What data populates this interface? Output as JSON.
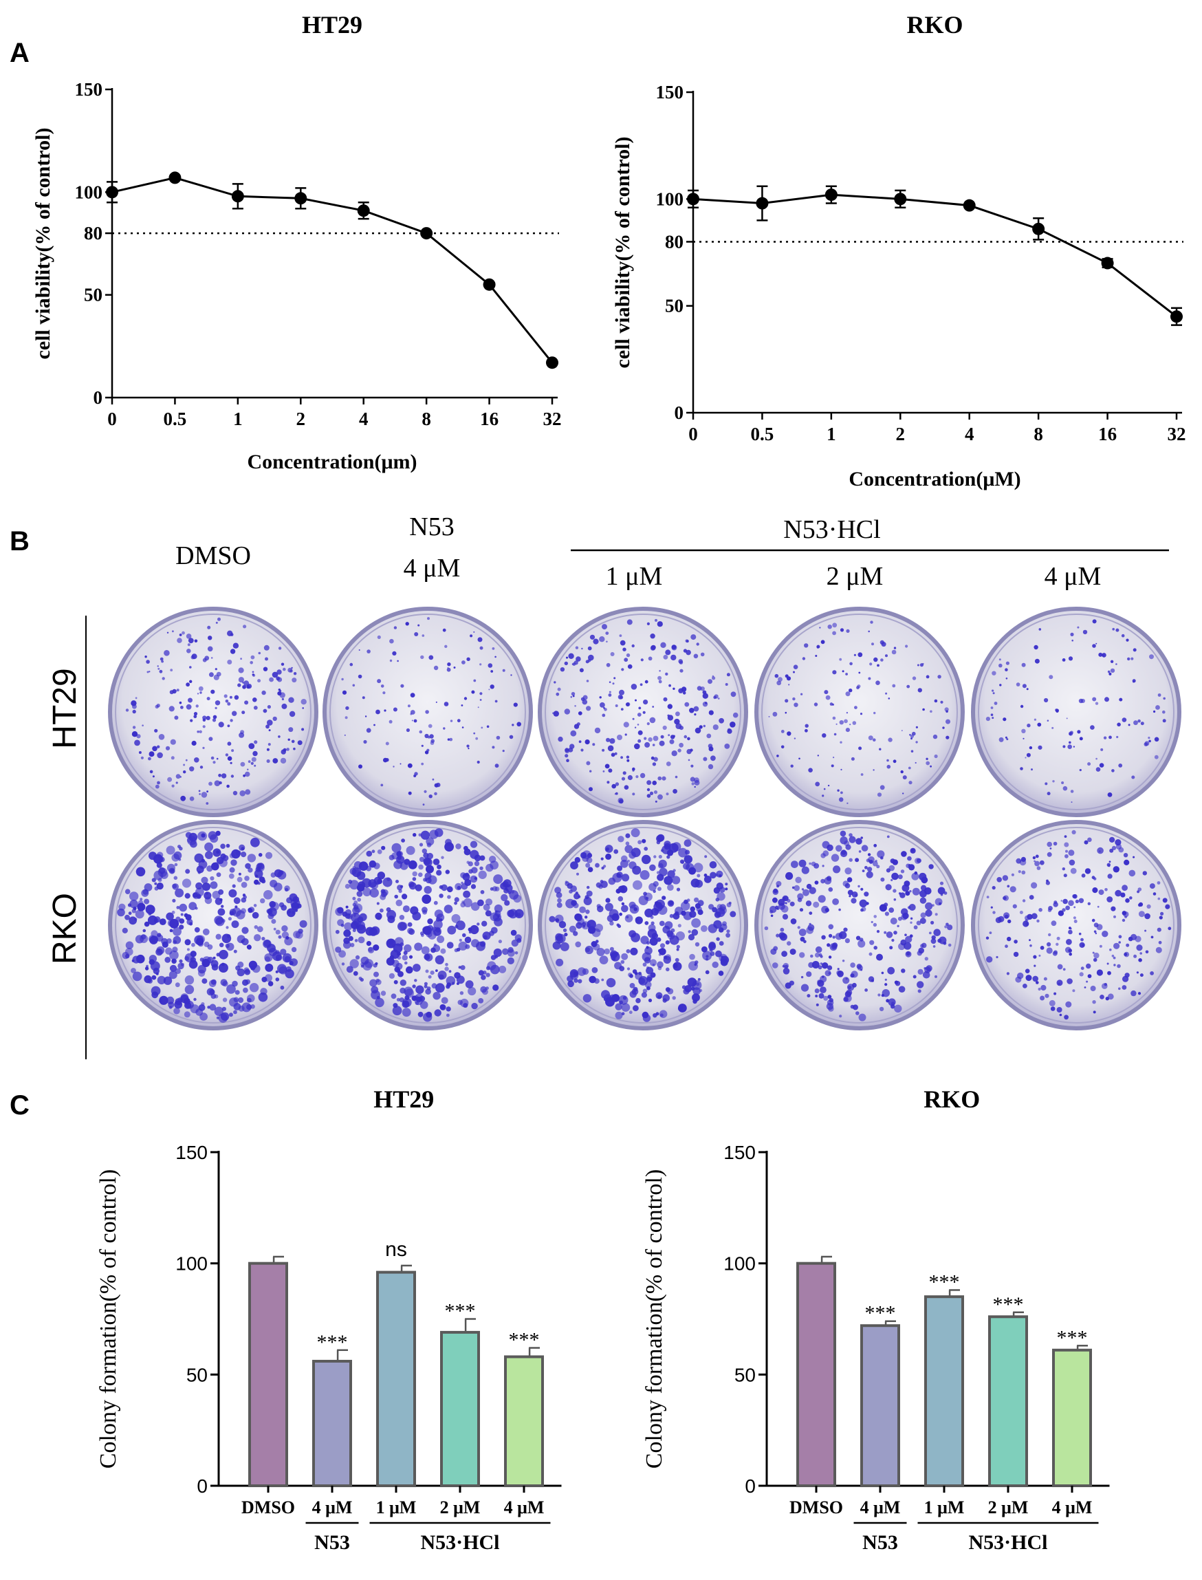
{
  "panel_labels": {
    "a": "A",
    "b": "B",
    "c": "C"
  },
  "dotted_ref_value": 80,
  "colors": {
    "line": "#000000",
    "dish_bg": "#e6e6ee",
    "dish_rim": "#8c89b8",
    "colony": "#3a2fc9",
    "bar_edge": "#5a5a5a",
    "bars": [
      "#a57fa8",
      "#9b9dc6",
      "#8fb5c6",
      "#7fcfbb",
      "#b9e59e"
    ]
  },
  "chart_data": [
    {
      "id": "A-HT29",
      "type": "line",
      "title": "HT29",
      "xlabel": "Concentration(μm)",
      "ylabel": "cell viability(% of control)",
      "categories": [
        "0",
        "0.5",
        "1",
        "2",
        "4",
        "8",
        "16",
        "32"
      ],
      "values": [
        100,
        107,
        98,
        97,
        91,
        80,
        55,
        17
      ],
      "errors": [
        5,
        0,
        6,
        5,
        4,
        0,
        0,
        0
      ],
      "ylim": [
        0,
        150
      ],
      "yticks": [
        0,
        50,
        80,
        100,
        150
      ],
      "ref_line": 80
    },
    {
      "id": "A-RKO",
      "type": "line",
      "title": "RKO",
      "xlabel": "Concentration(μM)",
      "ylabel": "cell viability(% of control)",
      "categories": [
        "0",
        "0.5",
        "1",
        "2",
        "4",
        "8",
        "16",
        "32"
      ],
      "values": [
        100,
        98,
        102,
        100,
        97,
        86,
        70,
        45
      ],
      "errors": [
        4,
        8,
        4,
        4,
        0,
        5,
        2,
        4
      ],
      "ylim": [
        0,
        150
      ],
      "yticks": [
        0,
        50,
        80,
        100,
        150
      ],
      "ref_line": 80
    },
    {
      "id": "C-HT29",
      "type": "bar",
      "title": "HT29",
      "ylabel": "Colony formation(% of control)",
      "categories": [
        "DMSO",
        "4 μM",
        "1 μM",
        "2 μM",
        "4 μM"
      ],
      "values": [
        100,
        56,
        96,
        69,
        58
      ],
      "errors": [
        3,
        5,
        3,
        6,
        4
      ],
      "significance": [
        "",
        "***",
        "ns",
        "***",
        "***"
      ],
      "groups": [
        {
          "label": "N53",
          "from": 1,
          "to": 1
        },
        {
          "label": "N53·HCl",
          "from": 2,
          "to": 4
        }
      ],
      "ylim": [
        0,
        150
      ],
      "yticks": [
        0,
        50,
        100,
        150
      ]
    },
    {
      "id": "C-RKO",
      "type": "bar",
      "title": "RKO",
      "ylabel": "Colony formation(% of control)",
      "categories": [
        "DMSO",
        "4 μM",
        "1 μM",
        "2 μM",
        "4 μM"
      ],
      "values": [
        100,
        72,
        85,
        76,
        61
      ],
      "errors": [
        3,
        2,
        3,
        2,
        2
      ],
      "significance": [
        "",
        "***",
        "***",
        "***",
        "***"
      ],
      "groups": [
        {
          "label": "N53",
          "from": 1,
          "to": 1
        },
        {
          "label": "N53·HCl",
          "from": 2,
          "to": 4
        }
      ],
      "ylim": [
        0,
        150
      ],
      "yticks": [
        0,
        50,
        100,
        150
      ]
    }
  ],
  "colony_panel": {
    "columns": [
      "DMSO",
      "N53\n4 μM",
      "1 μM",
      "2 μM",
      "4 μM"
    ],
    "group_header": "N53·HCl",
    "rows": [
      {
        "label": "HT29",
        "density": [
          0.55,
          0.3,
          0.6,
          0.35,
          0.3
        ],
        "colony_size": [
          1.0,
          0.8,
          1.0,
          0.8,
          0.8
        ]
      },
      {
        "label": "RKO",
        "density": [
          1.0,
          1.0,
          0.95,
          0.8,
          0.6
        ],
        "colony_size": [
          1.6,
          1.6,
          1.6,
          1.3,
          1.1
        ]
      }
    ]
  }
}
